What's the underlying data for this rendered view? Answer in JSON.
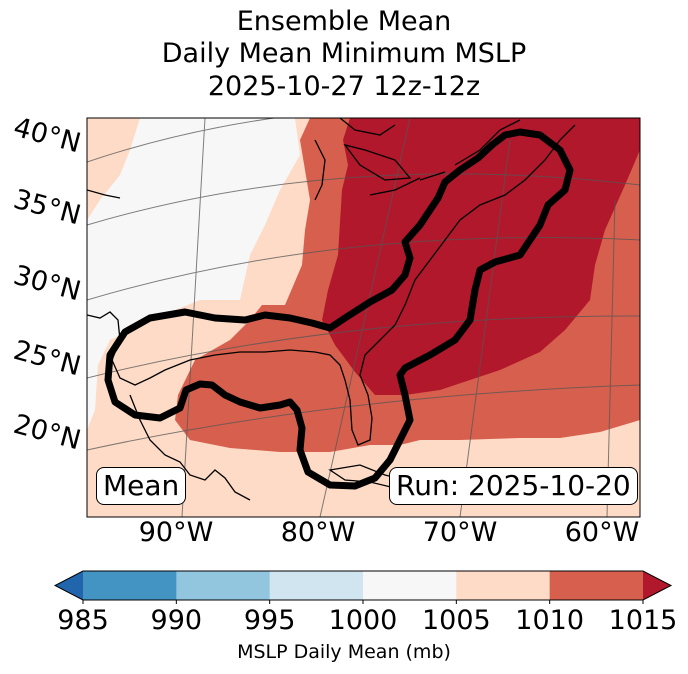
{
  "title": {
    "line1": "Ensemble Mean",
    "line2": "Daily Mean Minimum MSLP",
    "line3": "2025-10-27 12z-12z"
  },
  "lat_labels": [
    "40°N",
    "35°N",
    "30°N",
    "25°N",
    "20°N"
  ],
  "lon_labels": [
    "90°W",
    "80°W",
    "70°W",
    "60°W"
  ],
  "mean_box": "Mean",
  "run_box": "Run: 2025-10-20",
  "colorbar": {
    "label": "MSLP Daily Mean (mb)",
    "ticks": [
      "985",
      "990",
      "995",
      "1000",
      "1005",
      "1010",
      "1015"
    ],
    "colors": [
      "#2166ac",
      "#4393c3",
      "#92c5de",
      "#d1e5f0",
      "#f7f7f7",
      "#fddbc7",
      "#d6604d",
      "#b2182b"
    ]
  },
  "map_colors": {
    "c1000_1005": "#f7f7f7",
    "c1005_1010": "#fddbc7",
    "c1010_1015": "#d6604d",
    "c1015_plus": "#b2182b"
  }
}
